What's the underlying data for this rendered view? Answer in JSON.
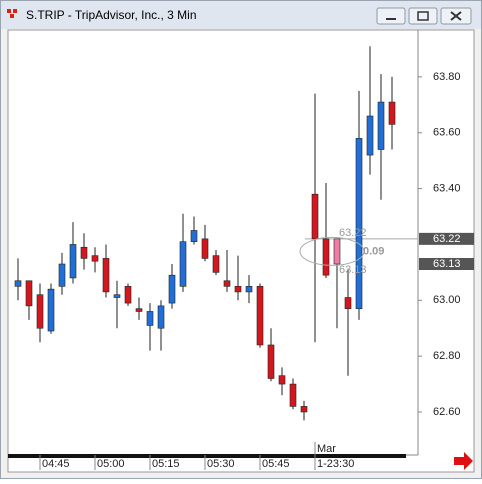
{
  "window_title": "S.TRIP - TripAdvisor, Inc., 3 Min",
  "chart_data": {
    "type": "candlestick",
    "categories": [
      null,
      null,
      "04:45",
      null,
      null,
      null,
      null,
      "05:00",
      null,
      null,
      null,
      null,
      "05:15",
      null,
      null,
      null,
      null,
      "05:30",
      null,
      null,
      null,
      null,
      "05:45",
      null,
      null,
      null,
      null,
      "1-23:30",
      null,
      null,
      null,
      null,
      null,
      null,
      null
    ],
    "date_label": "Mar",
    "open": [
      63.05,
      63.07,
      63.02,
      62.89,
      63.05,
      63.08,
      63.19,
      63.16,
      63.15,
      63.01,
      63.05,
      62.97,
      62.91,
      62.9,
      62.99,
      63.05,
      63.21,
      63.22,
      63.16,
      63.07,
      63.05,
      63.03,
      63.05,
      62.84,
      62.73,
      62.7,
      62.62,
      63.38,
      63.22,
      63.22,
      63.01,
      62.97,
      63.52,
      63.54,
      63.71
    ],
    "high": [
      63.15,
      63.07,
      63.06,
      63.06,
      63.17,
      63.28,
      63.24,
      63.19,
      63.2,
      63.07,
      63.06,
      63.01,
      62.99,
      63.0,
      63.13,
      63.31,
      63.3,
      63.27,
      63.18,
      63.18,
      63.16,
      63.09,
      63.06,
      62.9,
      62.76,
      62.72,
      62.64,
      63.74,
      63.42,
      63.22,
      63.11,
      63.75,
      63.91,
      63.81,
      63.8
    ],
    "low": [
      63.0,
      62.93,
      62.85,
      62.88,
      63.02,
      63.06,
      63.11,
      63.1,
      63.01,
      62.9,
      62.98,
      62.93,
      62.82,
      62.82,
      62.97,
      63.03,
      63.2,
      63.14,
      63.09,
      63.03,
      63.0,
      62.99,
      62.83,
      62.71,
      62.66,
      62.61,
      62.57,
      62.85,
      63.08,
      62.9,
      62.73,
      62.93,
      63.45,
      63.36,
      63.54
    ],
    "close": [
      63.07,
      62.98,
      62.9,
      63.04,
      63.13,
      63.2,
      63.15,
      63.14,
      63.03,
      63.02,
      62.99,
      62.96,
      62.96,
      62.98,
      63.09,
      63.21,
      63.25,
      63.15,
      63.1,
      63.05,
      63.03,
      63.05,
      62.84,
      62.72,
      62.7,
      62.62,
      62.6,
      63.22,
      63.09,
      63.13,
      62.97,
      63.58,
      63.66,
      63.71,
      63.63
    ],
    "up_color": "#1f6fd6",
    "down_color": "#d4161e",
    "highlight_color": "#f27ba3",
    "highlight_index": 29,
    "ylim": [
      62.446,
      63.968
    ],
    "yticks": [
      {
        "value": 62.6,
        "label": "62.60"
      },
      {
        "value": 62.8,
        "label": "62.80"
      },
      {
        "value": 63.0,
        "label": "63.00"
      },
      {
        "value": 63.4,
        "label": "63.40"
      },
      {
        "value": 63.6,
        "label": "63.60"
      },
      {
        "value": 63.8,
        "label": "63.80"
      }
    ],
    "price_markers": [
      {
        "value": 63.22,
        "label": "63.22"
      },
      {
        "value": 63.13,
        "label": "63.13"
      }
    ],
    "measure": {
      "high": {
        "value": 63.22,
        "label": "63.22"
      },
      "low": {
        "value": 63.13,
        "label": "63.13"
      },
      "diff": 0.09
    }
  }
}
